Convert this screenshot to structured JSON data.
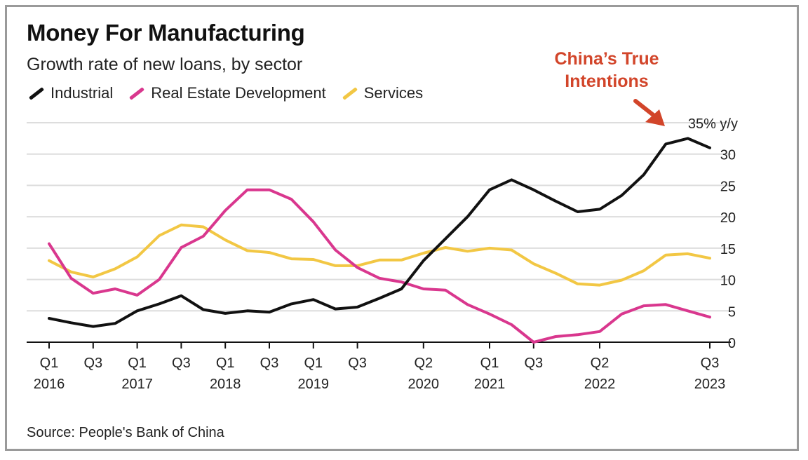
{
  "title": "Money For Manufacturing",
  "subtitle": "Growth rate of new loans, by sector",
  "source": "Source: People's Bank of China",
  "annotation": "China’s True Intentions",
  "colors": {
    "industrial": "#111111",
    "real_estate": "#d9378e",
    "services": "#f2c744",
    "annotation": "#d2452a",
    "grid": "#dddddd"
  },
  "chart_data": {
    "type": "line",
    "title": "Money For Manufacturing",
    "subtitle": "Growth rate of new loans, by sector",
    "xlabel": "",
    "ylabel": "",
    "y_unit_label": "35% y/y",
    "ylim": [
      0,
      35
    ],
    "yticks": [
      0,
      5,
      10,
      15,
      20,
      25,
      30
    ],
    "grid": true,
    "legend_position": "top-left",
    "x": [
      "2016Q1",
      "2016Q2",
      "2016Q3",
      "2016Q4",
      "2017Q1",
      "2017Q2",
      "2017Q3",
      "2017Q4",
      "2018Q1",
      "2018Q2",
      "2018Q3",
      "2018Q4",
      "2019Q1",
      "2019Q2",
      "2019Q3",
      "2019Q4",
      "2020Q1",
      "2020Q2",
      "2020Q3",
      "2020Q4",
      "2021Q1",
      "2021Q2",
      "2021Q3",
      "2021Q4",
      "2022Q1",
      "2022Q2",
      "2022Q3",
      "2022Q4",
      "2023Q1",
      "2023Q2",
      "2023Q3"
    ],
    "x_tick_labels": [
      {
        "period": "2016Q1",
        "line1": "Q1",
        "line2": "2016"
      },
      {
        "period": "2016Q3",
        "line1": "Q3",
        "line2": ""
      },
      {
        "period": "2017Q1",
        "line1": "Q1",
        "line2": "2017"
      },
      {
        "period": "2017Q3",
        "line1": "Q3",
        "line2": ""
      },
      {
        "period": "2018Q1",
        "line1": "Q1",
        "line2": "2018"
      },
      {
        "period": "2018Q3",
        "line1": "Q3",
        "line2": ""
      },
      {
        "period": "2019Q1",
        "line1": "Q1",
        "line2": "2019"
      },
      {
        "period": "2019Q3",
        "line1": "Q3",
        "line2": ""
      },
      {
        "period": "2020Q2",
        "line1": "Q2",
        "line2": "2020"
      },
      {
        "period": "2021Q1",
        "line1": "Q1",
        "line2": "2021"
      },
      {
        "period": "2021Q3",
        "line1": "Q3",
        "line2": ""
      },
      {
        "period": "2022Q2",
        "line1": "Q2",
        "line2": "2022"
      },
      {
        "period": "2023Q3",
        "line1": "Q3",
        "line2": "2023"
      }
    ],
    "series": [
      {
        "name": "Industrial",
        "key": "industrial",
        "values": [
          3.8,
          3.1,
          2.5,
          3.0,
          5.0,
          6.1,
          7.4,
          5.2,
          4.6,
          5.0,
          4.8,
          6.1,
          6.8,
          5.3,
          5.6,
          7.0,
          8.5,
          13.0,
          16.5,
          20.0,
          24.3,
          25.9,
          24.3,
          22.5,
          20.8,
          21.2,
          23.4,
          26.7,
          31.6,
          32.5,
          31.0
        ]
      },
      {
        "name": "Real Estate Development",
        "key": "real_estate",
        "values": [
          15.7,
          10.2,
          7.8,
          8.5,
          7.5,
          10.0,
          15.1,
          16.9,
          21.0,
          24.3,
          24.3,
          22.8,
          19.2,
          14.7,
          11.9,
          10.2,
          9.6,
          8.5,
          8.3,
          6.0,
          4.5,
          2.8,
          0.0,
          0.9,
          1.2,
          1.7,
          4.5,
          5.8,
          6.0,
          5.0,
          4.0
        ]
      },
      {
        "name": "Services",
        "key": "services",
        "values": [
          13.0,
          11.2,
          10.4,
          11.7,
          13.6,
          17.0,
          18.7,
          18.4,
          16.3,
          14.6,
          14.3,
          13.3,
          13.2,
          12.2,
          12.2,
          13.1,
          13.1,
          14.2,
          15.1,
          14.5,
          15.0,
          14.7,
          12.5,
          11.0,
          9.3,
          9.1,
          9.9,
          11.4,
          13.9,
          14.1,
          13.4
        ]
      }
    ]
  }
}
